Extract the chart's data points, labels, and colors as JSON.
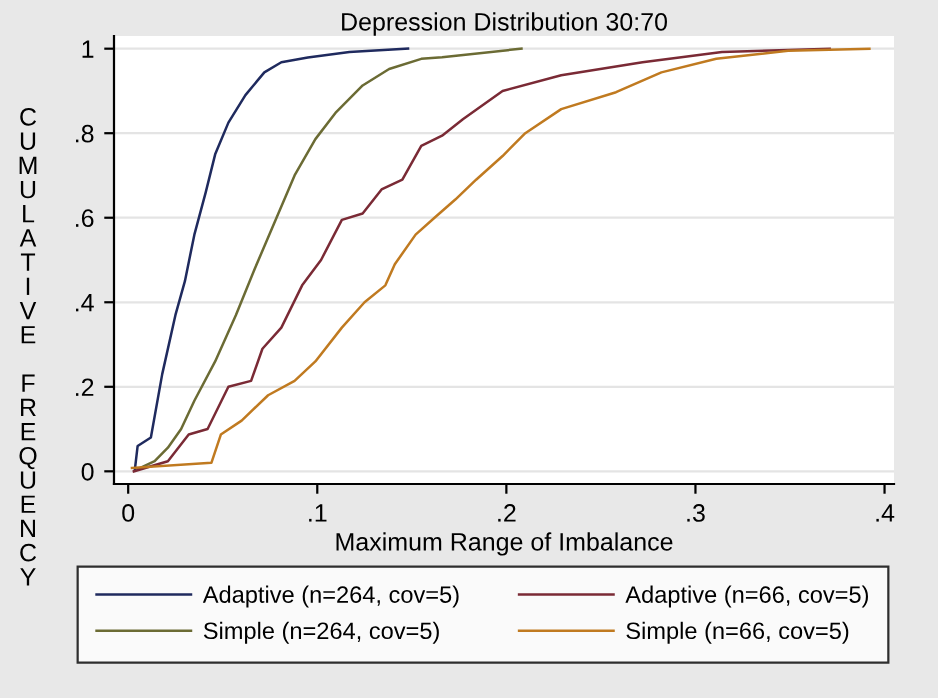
{
  "chart_data": {
    "type": "line",
    "title": "Depression Distribution 30:70",
    "xlabel": "Maximum Range of Imbalance",
    "ylabel": "CUMULATIVE FREQUENCY",
    "xlim": [
      -0.0075,
      0.405
    ],
    "ylim": [
      -0.03,
      1.03
    ],
    "xticks": [
      0,
      {
        "value": 0.1,
        "label": ".1"
      },
      {
        "value": 0.2,
        "label": ".2"
      },
      {
        "value": 0.3,
        "label": ".3"
      },
      {
        "value": 0.4,
        "label": ".4"
      }
    ],
    "yticks": [
      0,
      {
        "value": 0.2,
        "label": ".2"
      },
      {
        "value": 0.4,
        "label": ".4"
      },
      {
        "value": 0.6,
        "label": ".6"
      },
      {
        "value": 0.8,
        "label": ".8"
      },
      1
    ],
    "grid": "y",
    "legend": "bottom",
    "marker": "none",
    "line_style": "solid",
    "series": [
      {
        "name": "Adaptive (n=264, cov=5)",
        "color": "#1f2a5e",
        "x": [
          0.0035,
          0.005,
          0.012,
          0.018,
          0.025,
          0.03,
          0.035,
          0.041,
          0.046,
          0.053,
          0.062,
          0.072,
          0.081,
          0.095,
          0.117,
          0.148
        ],
        "values": [
          0.003,
          0.06,
          0.08,
          0.23,
          0.37,
          0.45,
          0.56,
          0.66,
          0.75,
          0.825,
          0.89,
          0.944,
          0.968,
          0.979,
          0.992,
          1.0
        ]
      },
      {
        "name": "Simple (n=264, cov=5)",
        "color": "#6b6b34",
        "x": [
          0.005,
          0.014,
          0.021,
          0.028,
          0.035,
          0.046,
          0.057,
          0.067,
          0.078,
          0.088,
          0.099,
          0.11,
          0.124,
          0.138,
          0.155,
          0.166,
          0.208
        ],
        "values": [
          0.005,
          0.024,
          0.056,
          0.1,
          0.167,
          0.26,
          0.37,
          0.48,
          0.595,
          0.7,
          0.786,
          0.85,
          0.913,
          0.952,
          0.976,
          0.98,
          1.0
        ]
      },
      {
        "name": "Adaptive (n=66, cov=5)",
        "color": "#7a2a35",
        "x": [
          0.003,
          0.021,
          0.032,
          0.042,
          0.053,
          0.065,
          0.071,
          0.081,
          0.092,
          0.102,
          0.113,
          0.124,
          0.134,
          0.145,
          0.155,
          0.166,
          0.177,
          0.198,
          0.229,
          0.272,
          0.314,
          0.371
        ],
        "values": [
          0.0,
          0.024,
          0.087,
          0.1,
          0.2,
          0.214,
          0.29,
          0.34,
          0.44,
          0.5,
          0.595,
          0.61,
          0.667,
          0.69,
          0.77,
          0.794,
          0.833,
          0.9,
          0.937,
          0.968,
          0.992,
          1.0
        ]
      },
      {
        "name": "Simple (n=66, cov=5)",
        "color": "#c07a20",
        "x": [
          0.002,
          0.044,
          0.049,
          0.06,
          0.074,
          0.088,
          0.099,
          0.113,
          0.125,
          0.136,
          0.141,
          0.152,
          0.162,
          0.173,
          0.184,
          0.198,
          0.21,
          0.229,
          0.258,
          0.282,
          0.311,
          0.349,
          0.392
        ],
        "values": [
          0.008,
          0.02,
          0.087,
          0.12,
          0.18,
          0.214,
          0.26,
          0.34,
          0.4,
          0.44,
          0.49,
          0.56,
          0.6,
          0.643,
          0.69,
          0.746,
          0.8,
          0.857,
          0.897,
          0.944,
          0.976,
          0.995,
          1.0
        ]
      }
    ]
  }
}
